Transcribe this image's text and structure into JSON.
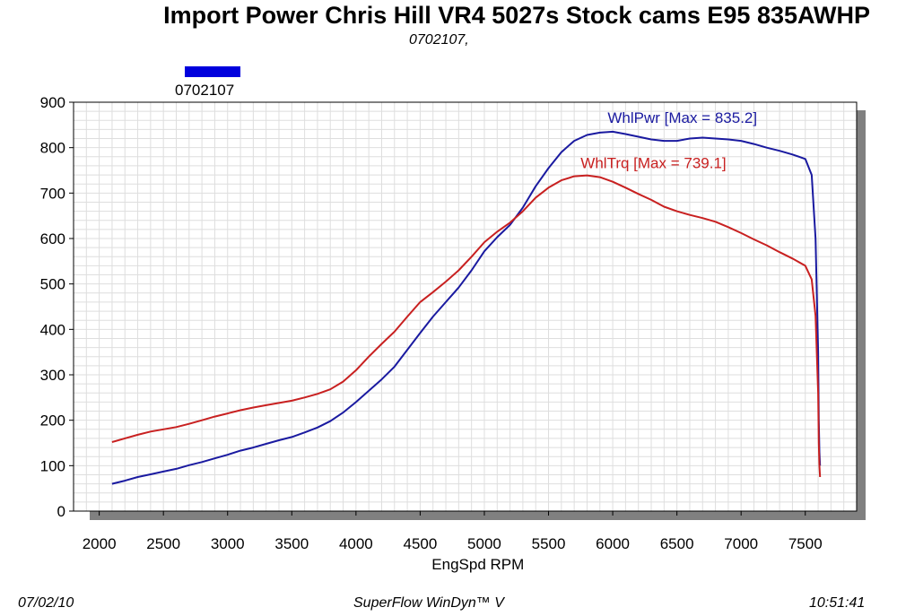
{
  "chart_data": {
    "type": "line",
    "title": "Import Power Chris Hill VR4 5027s Stock cams E95 835AWHP",
    "subtitle": "0702107,",
    "legend": {
      "label": "0702107",
      "color": "#0000dd",
      "placement": "top-left"
    },
    "xlabel": "EngSpd  RPM",
    "xlim": [
      1800,
      7900
    ],
    "ylim": [
      0,
      900
    ],
    "xticks": [
      2000,
      2500,
      3000,
      3500,
      4000,
      4500,
      5000,
      5500,
      6000,
      6500,
      7000,
      7500
    ],
    "yticks": [
      0,
      100,
      200,
      300,
      400,
      500,
      600,
      700,
      800,
      900
    ],
    "grid": true,
    "series": [
      {
        "name": "WhlPwr",
        "annotation": "WhlPwr [Max = 835.2]",
        "color": "#1a1aa0",
        "x": [
          2100,
          2200,
          2300,
          2400,
          2500,
          2600,
          2700,
          2800,
          2900,
          3000,
          3100,
          3200,
          3300,
          3400,
          3500,
          3600,
          3700,
          3800,
          3900,
          4000,
          4100,
          4200,
          4300,
          4400,
          4500,
          4600,
          4700,
          4800,
          4900,
          5000,
          5100,
          5200,
          5300,
          5400,
          5500,
          5600,
          5700,
          5800,
          5900,
          6000,
          6100,
          6200,
          6300,
          6400,
          6500,
          6600,
          6700,
          6800,
          6900,
          7000,
          7100,
          7200,
          7300,
          7400,
          7500,
          7550,
          7580,
          7600,
          7605,
          7610,
          7615
        ],
        "values": [
          60,
          67,
          75,
          81,
          87,
          93,
          101,
          108,
          116,
          124,
          133,
          140,
          148,
          156,
          163,
          173,
          184,
          198,
          217,
          240,
          265,
          290,
          318,
          355,
          392,
          428,
          460,
          492,
          530,
          572,
          603,
          630,
          668,
          715,
          755,
          790,
          815,
          828,
          833,
          835,
          830,
          824,
          818,
          815,
          815,
          820,
          822,
          820,
          818,
          815,
          808,
          800,
          793,
          785,
          775,
          740,
          600,
          350,
          200,
          130,
          100
        ]
      },
      {
        "name": "WhlTrq",
        "annotation": "WhlTrq [Max = 739.1]",
        "color": "#c82020",
        "x": [
          2100,
          2200,
          2300,
          2400,
          2500,
          2600,
          2700,
          2800,
          2900,
          3000,
          3100,
          3200,
          3300,
          3400,
          3500,
          3600,
          3700,
          3800,
          3900,
          4000,
          4100,
          4200,
          4300,
          4400,
          4500,
          4600,
          4700,
          4800,
          4900,
          5000,
          5100,
          5200,
          5300,
          5400,
          5500,
          5600,
          5700,
          5800,
          5900,
          6000,
          6100,
          6200,
          6300,
          6400,
          6500,
          6600,
          6700,
          6800,
          6900,
          7000,
          7100,
          7200,
          7300,
          7400,
          7500,
          7550,
          7580,
          7600,
          7605,
          7610,
          7615
        ],
        "values": [
          152,
          160,
          168,
          175,
          180,
          185,
          192,
          200,
          208,
          215,
          222,
          228,
          233,
          238,
          243,
          250,
          258,
          268,
          285,
          310,
          340,
          368,
          395,
          428,
          460,
          482,
          505,
          530,
          560,
          592,
          615,
          635,
          660,
          690,
          712,
          728,
          737,
          739,
          735,
          725,
          712,
          698,
          685,
          670,
          660,
          652,
          645,
          637,
          625,
          612,
          598,
          585,
          570,
          556,
          540,
          510,
          430,
          260,
          150,
          100,
          75
        ]
      }
    ]
  },
  "footer": {
    "date": "07/02/10",
    "software": "SuperFlow WinDyn™ V",
    "time": "10:51:41"
  }
}
